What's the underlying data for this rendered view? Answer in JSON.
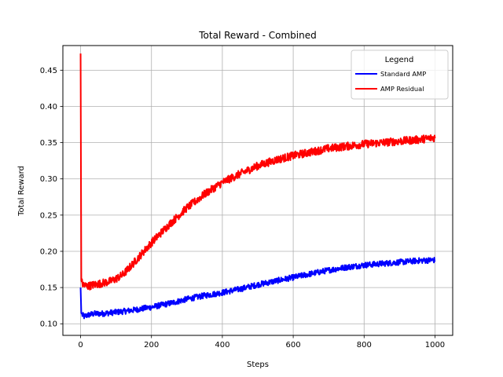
{
  "chart_data": {
    "type": "line",
    "title": "Total Reward - Combined",
    "xlabel": "Steps",
    "ylabel": "Total Reward",
    "xlim": [
      -50,
      1050
    ],
    "ylim": [
      0.084,
      0.484
    ],
    "xticks": [
      0,
      200,
      400,
      600,
      800,
      1000
    ],
    "xtick_labels": [
      "0",
      "200",
      "400",
      "600",
      "800",
      "1000"
    ],
    "yticks": [
      0.1,
      0.15,
      0.2,
      0.25,
      0.3,
      0.35,
      0.4,
      0.45
    ],
    "ytick_labels": [
      "0.10",
      "0.15",
      "0.20",
      "0.25",
      "0.30",
      "0.35",
      "0.40",
      "0.45"
    ],
    "grid": true,
    "legend": {
      "title": "Legend",
      "location": "top-right"
    },
    "series": [
      {
        "name": "Standard AMP",
        "color": "#0000ff",
        "x": [
          0,
          2,
          5,
          10,
          20,
          40,
          60,
          80,
          100,
          120,
          150,
          200,
          250,
          300,
          350,
          400,
          450,
          500,
          550,
          600,
          650,
          700,
          750,
          800,
          850,
          900,
          950,
          1000
        ],
        "y": [
          0.15,
          0.115,
          0.112,
          0.11,
          0.112,
          0.114,
          0.114,
          0.115,
          0.116,
          0.117,
          0.119,
          0.123,
          0.128,
          0.134,
          0.139,
          0.143,
          0.148,
          0.154,
          0.159,
          0.164,
          0.169,
          0.174,
          0.178,
          0.181,
          0.183,
          0.185,
          0.187,
          0.188
        ]
      },
      {
        "name": "AMP Residual",
        "color": "#ff0000",
        "x": [
          0,
          2,
          5,
          10,
          20,
          40,
          60,
          80,
          100,
          120,
          150,
          200,
          250,
          300,
          350,
          400,
          450,
          500,
          550,
          600,
          650,
          700,
          750,
          800,
          850,
          900,
          950,
          1000
        ],
        "y": [
          0.473,
          0.16,
          0.155,
          0.153,
          0.152,
          0.154,
          0.156,
          0.158,
          0.162,
          0.168,
          0.184,
          0.212,
          0.237,
          0.26,
          0.279,
          0.295,
          0.307,
          0.318,
          0.326,
          0.332,
          0.337,
          0.342,
          0.345,
          0.348,
          0.35,
          0.352,
          0.354,
          0.357
        ]
      }
    ]
  }
}
